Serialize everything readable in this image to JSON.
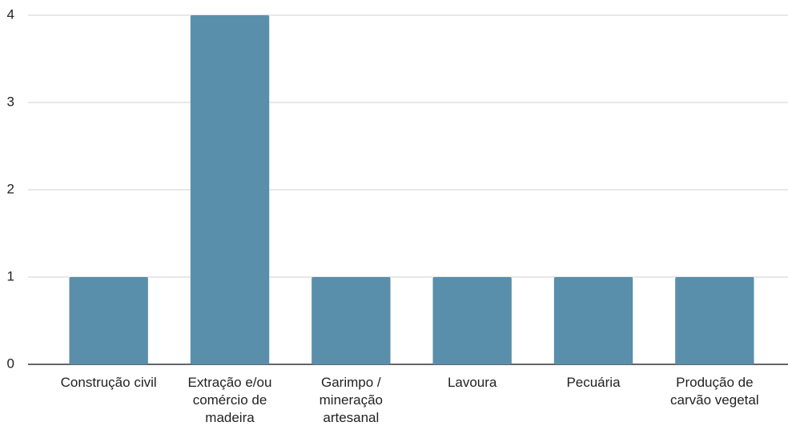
{
  "chart_data": {
    "type": "bar",
    "categories": [
      "Construção civil",
      "Extração e/ou comércio de madeira",
      "Garimpo / mineração artesanal",
      "Lavoura",
      "Pecuária",
      "Produção de carvão vegetal"
    ],
    "values": [
      1,
      4,
      1,
      1,
      1,
      1
    ],
    "color": "#5a8fab",
    "ylim": [
      0,
      4
    ],
    "yticks": [
      0,
      1,
      2,
      3,
      4
    ],
    "grid": true
  }
}
